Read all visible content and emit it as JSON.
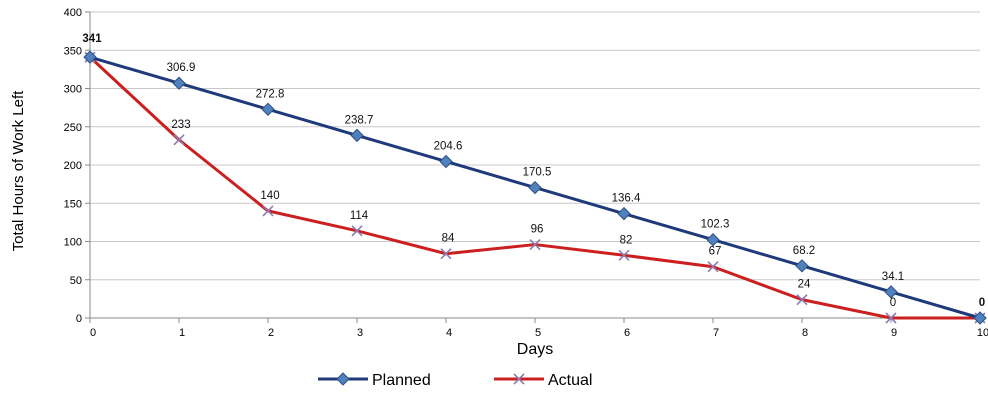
{
  "chart_data": {
    "type": "line",
    "title": "",
    "xlabel": "Days",
    "ylabel": "Total Hours of Work Left",
    "x": [
      "0",
      "1",
      "2",
      "3",
      "4",
      "5",
      "6",
      "7",
      "8",
      "9",
      "10"
    ],
    "ylim": [
      0,
      400
    ],
    "yticks": [
      "0",
      "50",
      "100",
      "150",
      "200",
      "250",
      "300",
      "350",
      "400"
    ],
    "legend_position": "bottom",
    "series": [
      {
        "name": "Planned",
        "color": "#1F3A7A",
        "marker": "diamond",
        "values": [
          341,
          306.9,
          272.8,
          238.7,
          204.6,
          170.5,
          136.4,
          102.3,
          68.2,
          34.1,
          0
        ],
        "labels": [
          "341",
          "306.9",
          "272.8",
          "238.7",
          "204.6",
          "170.5",
          "136.4",
          "102.3",
          "68.2",
          "34.1",
          "0"
        ]
      },
      {
        "name": "Actual",
        "color": "#CC1F1F",
        "marker": "x",
        "values": [
          341,
          233,
          140,
          114,
          84,
          96,
          82,
          67,
          24,
          0,
          0
        ],
        "labels": [
          "",
          "233",
          "140",
          "114",
          "84",
          "96",
          "82",
          "67",
          "24",
          "0",
          ""
        ]
      }
    ]
  }
}
